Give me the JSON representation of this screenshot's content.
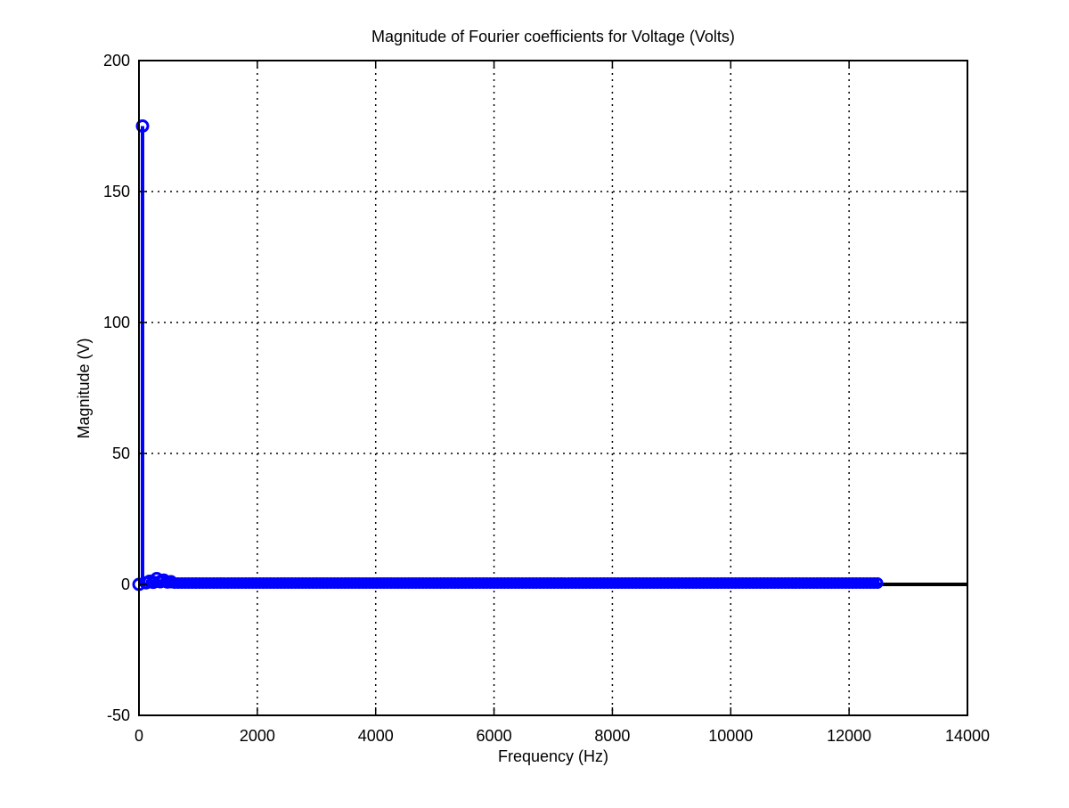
{
  "chart_data": {
    "type": "stem",
    "title": "Magnitude of Fourier coefficients for Voltage (Volts)",
    "xlabel": "Frequency (Hz)",
    "ylabel": "Magnitude (V)",
    "xlim": [
      0,
      14000
    ],
    "ylim": [
      -50,
      200
    ],
    "xticks": [
      0,
      2000,
      4000,
      6000,
      8000,
      10000,
      12000,
      14000
    ],
    "yticks": [
      -50,
      0,
      50,
      100,
      150,
      200
    ],
    "xtick_labels": [
      "0",
      "2000",
      "4000",
      "6000",
      "8000",
      "10000",
      "12000",
      "14000"
    ],
    "ytick_labels": [
      "-50",
      "0",
      "50",
      "100",
      "150",
      "200"
    ],
    "grid": true,
    "series": [
      {
        "color": "#0000ff",
        "fundamental_hz": 60,
        "max_freq_hz": 12500,
        "points": [
          {
            "x": 0,
            "y": 0
          },
          {
            "x": 60,
            "y": 175
          },
          {
            "x": 120,
            "y": 0.6
          },
          {
            "x": 180,
            "y": 1.2
          },
          {
            "x": 240,
            "y": 0.8
          },
          {
            "x": 300,
            "y": 2.2
          },
          {
            "x": 360,
            "y": 1.0
          },
          {
            "x": 420,
            "y": 1.6
          },
          {
            "x": 480,
            "y": 0.9
          },
          {
            "x": 540,
            "y": 1.0
          }
        ],
        "baseline_level": 0.5
      }
    ],
    "baseline_color": "#000000"
  }
}
